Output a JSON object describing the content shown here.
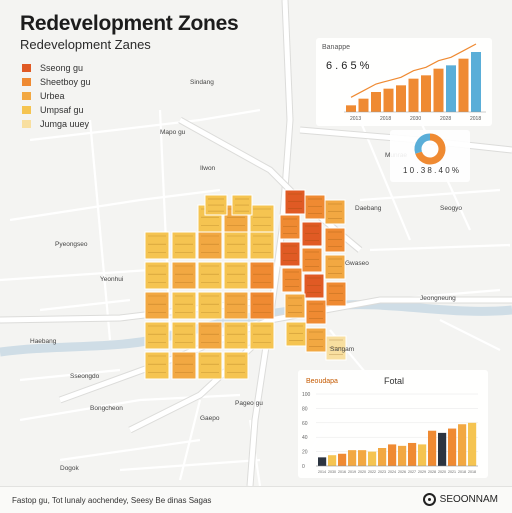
{
  "title": "Redevelopment Zones",
  "subtitle": "Redevelopment Zanes",
  "legend": [
    {
      "label": "Sseong gu",
      "color": "#e05a24"
    },
    {
      "label": "Sheetboy gu",
      "color": "#ef8a32"
    },
    {
      "label": "Urbea",
      "color": "#f2a842"
    },
    {
      "label": "Umpsaf gu",
      "color": "#f5c451"
    },
    {
      "label": "Jumga uuey",
      "color": "#f8dfa0"
    }
  ],
  "palette": {
    "deep_orange": "#e05a24",
    "orange": "#ef8a32",
    "amber": "#f2a842",
    "yellow": "#f5c451",
    "pale": "#f8dfa0",
    "road": "#ffffff",
    "river": "#cfdde6",
    "dark_bar": "#2c3440",
    "blue_bar": "#5aaed8"
  },
  "map_labels": [
    "Pageo gu",
    "Sseongdo",
    "Pyeongseo",
    "Mapo gu",
    "Haebang",
    "Sindang",
    "Ilwon",
    "Gwaseo",
    "Daebang",
    "Munrae",
    "Seogyo",
    "Jeongneung",
    "Yeonhui",
    "Sangam",
    "Gaepo",
    "Dogok",
    "Bongcheon"
  ],
  "top_chart": {
    "title": "Banappe",
    "value_text": "6 . 6 5 %",
    "tick_labels": [
      "2013",
      "2018",
      "2030",
      "2028",
      "2018"
    ],
    "chart_data": {
      "type": "bar",
      "title": "Banappe",
      "values": [
        1,
        2,
        3,
        3.5,
        4,
        5,
        5.5,
        6.5,
        7,
        8,
        9
      ],
      "colors": [
        "#ef8a32",
        "#ef8a32",
        "#ef8a32",
        "#ef8a32",
        "#ef8a32",
        "#ef8a32",
        "#ef8a32",
        "#ef8a32",
        "#5aaed8",
        "#ef8a32",
        "#5aaed8"
      ]
    }
  },
  "donut": {
    "caption": "1 0 . 3 8 . 4 0 %",
    "chart_data": {
      "type": "pie",
      "values": [
        70,
        30
      ],
      "colors": [
        "#ef8a32",
        "#5aaed8"
      ]
    }
  },
  "bottom_chart": {
    "title": "Beoudapa",
    "heading": "Fotal",
    "y_ticks": [
      "0",
      "20",
      "40",
      "60",
      "80",
      "100"
    ],
    "x_ticks": [
      "2014",
      "2030",
      "2016",
      "2019",
      "2020",
      "2022",
      "2023",
      "2024",
      "2026",
      "2027",
      "2029",
      "2028",
      "2020",
      "2021",
      "2018",
      "2018"
    ],
    "chart_data": {
      "type": "bar",
      "title": "Beoudapa",
      "ylim": [
        0,
        100
      ],
      "values": [
        12,
        15,
        17,
        22,
        22,
        20,
        25,
        30,
        28,
        32,
        30,
        49,
        46,
        52,
        58,
        60
      ],
      "colors": [
        "#2c3440",
        "#f5c451",
        "#ef8a32",
        "#f2a842",
        "#f2a842",
        "#f5c451",
        "#f2a842",
        "#ef8a32",
        "#f2a842",
        "#ef8a32",
        "#f5c451",
        "#ef8a32",
        "#2c3440",
        "#ef8a32",
        "#f2a842",
        "#f5c451"
      ]
    }
  },
  "footer": {
    "note": "Fastop gu, Tot lunaly aochendey, Seesy Be dinas Sagas",
    "brand": "SEOONNAM"
  }
}
